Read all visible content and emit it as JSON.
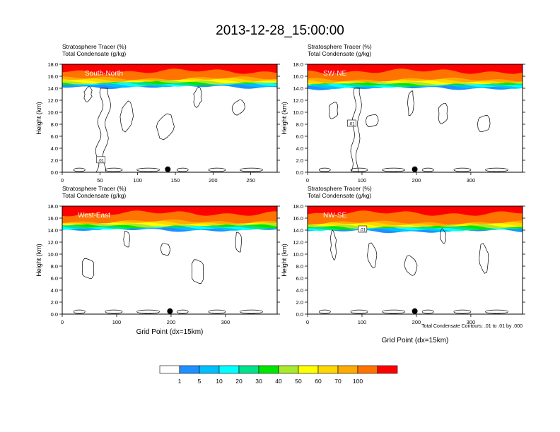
{
  "title": "2013-12-28_15:00:00",
  "panel_label_1": "Stratosphere Tracer   (%)",
  "panel_label_2": "Total Condensate   (g/kg)",
  "footnote": "Total Condensate Contours: .01 to .01 by .000",
  "colors": [
    "#ffffff",
    "#1e90ff",
    "#00bfff",
    "#00ffff",
    "#00e28c",
    "#00e600",
    "#aaea2c",
    "#ffff00",
    "#ffd700",
    "#ffaa00",
    "#ff7300",
    "#ff0000"
  ],
  "chart_data": [
    {
      "type": "heatmap",
      "name": "South-North",
      "ylabel": "Height (km)",
      "xlabel": "",
      "x_ticks": [
        "0",
        "50",
        "100",
        "150",
        "200",
        "250"
      ],
      "y_ticks": [
        "0.0",
        "2.0",
        "4.0",
        "6.0",
        "8.0",
        "10.0",
        "12.0",
        "14.0",
        "16.0",
        "18.0"
      ],
      "xlim": [
        0,
        285
      ],
      "ylim": [
        0,
        18
      ],
      "tropopause_km": 16.2,
      "contour_label": ".01",
      "marker_x": 140
    },
    {
      "type": "heatmap",
      "name": "SW-NE",
      "ylabel": "Height (km)",
      "xlabel": "",
      "x_ticks": [
        "0",
        "100",
        "200",
        "300"
      ],
      "y_ticks": [
        "0.0",
        "2.0",
        "4.0",
        "6.0",
        "8.0",
        "10.0",
        "12.0",
        "14.0",
        "16.0",
        "18.0"
      ],
      "xlim": [
        0,
        395
      ],
      "ylim": [
        0,
        18
      ],
      "tropopause_km": 16.0,
      "contour_label": ".01",
      "marker_x": 197
    },
    {
      "type": "heatmap",
      "name": "West-East",
      "ylabel": "Height (km)",
      "xlabel": "Grid Point (dx=15km)",
      "x_ticks": [
        "0",
        "100",
        "200",
        "300"
      ],
      "y_ticks": [
        "0.0",
        "2.0",
        "4.0",
        "6.0",
        "8.0",
        "10.0",
        "12.0",
        "14.0",
        "16.0",
        "18.0"
      ],
      "xlim": [
        0,
        395
      ],
      "ylim": [
        0,
        18
      ],
      "tropopause_km": 16.0,
      "contour_label": "",
      "marker_x": 198
    },
    {
      "type": "heatmap",
      "name": "NW-SE",
      "ylabel": "Height (km)",
      "xlabel": "Grid Point (dx=15km)",
      "x_ticks": [
        "0",
        "100",
        "200",
        "300"
      ],
      "y_ticks": [
        "0.0",
        "2.0",
        "4.0",
        "6.0",
        "8.0",
        "10.0",
        "12.0",
        "14.0",
        "16.0",
        "18.0"
      ],
      "xlim": [
        0,
        395
      ],
      "ylim": [
        0,
        18
      ],
      "tropopause_km": 15.8,
      "contour_label": ".01",
      "marker_x": 197
    }
  ],
  "colorbar_labels": [
    "1",
    "5",
    "10",
    "20",
    "30",
    "40",
    "50",
    "60",
    "70",
    "100"
  ]
}
